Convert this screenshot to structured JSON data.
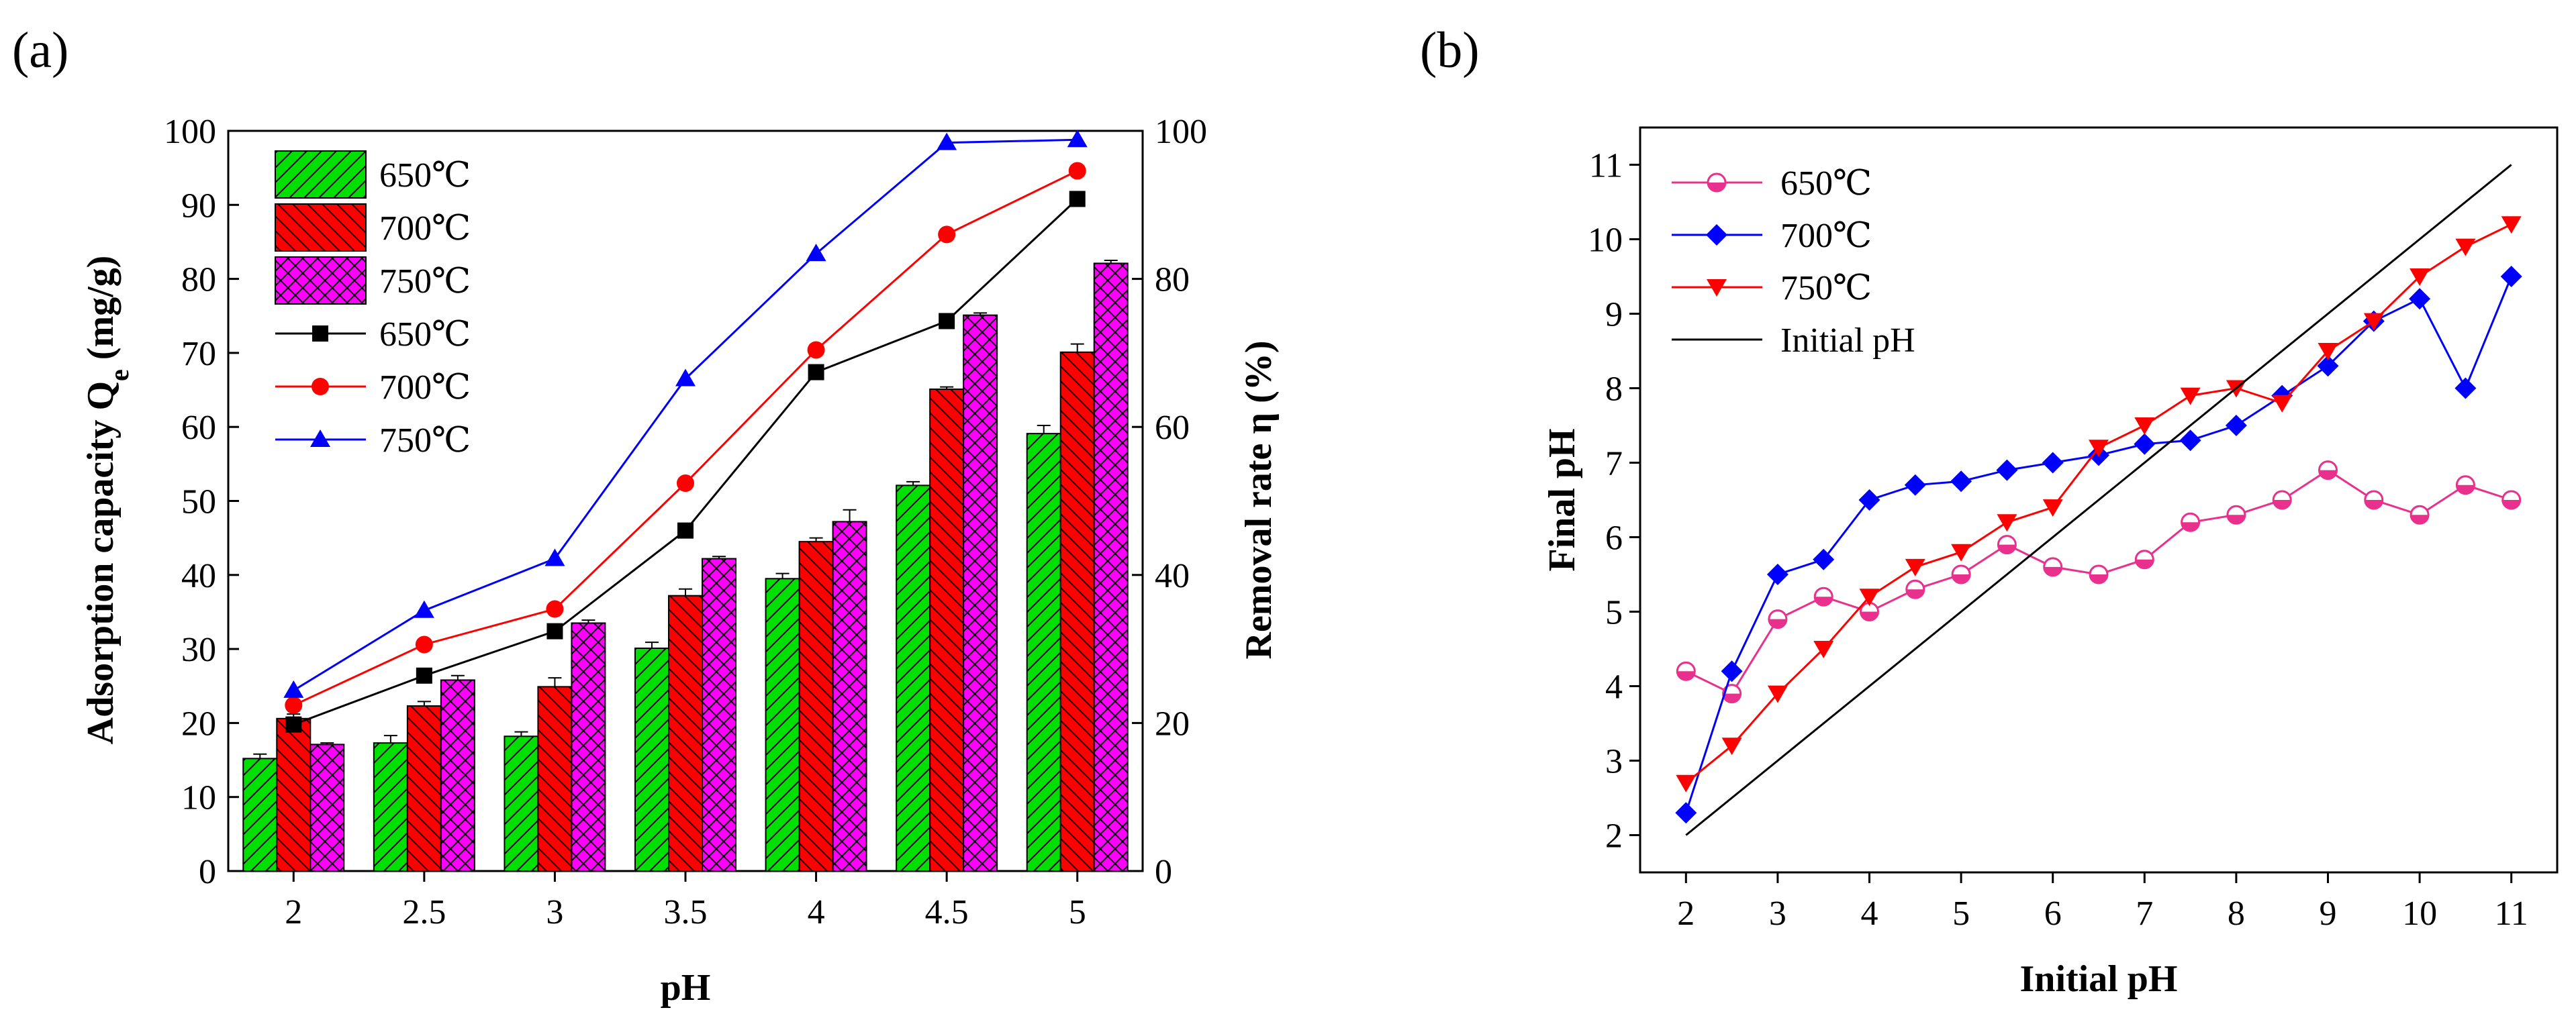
{
  "chart_data": [
    {
      "panel_label": "(a)",
      "type": "bar",
      "categories": [
        "2",
        "2.5",
        "3",
        "3.5",
        "4",
        "4.5",
        "5"
      ],
      "xlabel": "pH",
      "ylabel_main": "Adsorption capacity Q",
      "ylabel_sub": "e",
      "ylabel_unit": " (mg/g)",
      "ylabel_right": "Removal rate η (%)",
      "ylim": [
        0,
        100
      ],
      "ylim_right": [
        0,
        100
      ],
      "yticks": [
        "0",
        "10",
        "20",
        "30",
        "40",
        "50",
        "60",
        "70",
        "80",
        "90",
        "100"
      ],
      "yticks_right": [
        "0",
        "20",
        "40",
        "60",
        "80",
        "100"
      ],
      "legend_position": "top-left",
      "series": [
        {
          "name": "650℃",
          "kind": "bar",
          "color": "#00e000",
          "pattern": "diag-fwd",
          "values": [
            15.2,
            17.3,
            18.2,
            30.1,
            39.5,
            52.1,
            59.1
          ],
          "errors": [
            0.6,
            1.0,
            0.6,
            0.8,
            0.7,
            0.5,
            1.1
          ]
        },
        {
          "name": "700℃",
          "kind": "bar",
          "color": "#ff0000",
          "pattern": "diag-back",
          "values": [
            20.6,
            22.3,
            24.9,
            37.2,
            44.5,
            65.1,
            70.1
          ],
          "errors": [
            0.6,
            0.6,
            1.2,
            0.9,
            0.5,
            0.3,
            1.1
          ]
        },
        {
          "name": "750℃",
          "kind": "bar",
          "color": "#ff00ff",
          "pattern": "cross",
          "values": [
            17.1,
            25.8,
            33.5,
            42.2,
            47.2,
            75.1,
            82.1
          ],
          "errors": [
            0.2,
            0.6,
            0.4,
            0.3,
            1.6,
            0.3,
            0.4
          ]
        },
        {
          "name": "650℃",
          "kind": "line",
          "axis": "right",
          "color": "#000000",
          "marker": "square",
          "values": [
            19.8,
            26.4,
            32.4,
            46.0,
            67.4,
            74.3,
            90.8
          ]
        },
        {
          "name": "700℃",
          "kind": "line",
          "axis": "right",
          "color": "#ff0000",
          "marker": "circle",
          "values": [
            22.4,
            30.6,
            35.4,
            52.4,
            70.4,
            86.0,
            94.6
          ]
        },
        {
          "name": "750℃",
          "kind": "line",
          "axis": "right",
          "color": "#0000ff",
          "marker": "triangle-up",
          "values": [
            24.4,
            35.2,
            42.2,
            66.5,
            83.4,
            98.4,
            98.8
          ]
        }
      ]
    },
    {
      "panel_label": "(b)",
      "type": "line",
      "xlabel": "Initial pH",
      "ylabel": "Final pH",
      "xlim": [
        1.5,
        11.5
      ],
      "ylim": [
        1.5,
        11.5
      ],
      "xticks": [
        "2",
        "3",
        "4",
        "5",
        "6",
        "7",
        "8",
        "9",
        "10",
        "11"
      ],
      "yticks": [
        "2",
        "3",
        "4",
        "5",
        "6",
        "7",
        "8",
        "9",
        "10",
        "11"
      ],
      "legend_position": "top-left",
      "x": [
        2,
        2.5,
        3,
        3.5,
        4,
        4.5,
        5,
        5.5,
        6,
        6.5,
        7,
        7.5,
        8,
        8.5,
        9,
        9.5,
        10,
        10.5,
        11
      ],
      "series": [
        {
          "name": "650℃",
          "color": "#e8308c",
          "marker": "half-circle",
          "values": [
            4.2,
            3.9,
            4.9,
            5.2,
            5.0,
            5.3,
            5.5,
            5.9,
            5.6,
            5.5,
            5.7,
            6.2,
            6.3,
            6.5,
            6.9,
            6.5,
            6.3,
            6.7,
            6.5
          ]
        },
        {
          "name": "700℃",
          "color": "#0000ff",
          "marker": "diamond",
          "values": [
            2.3,
            4.2,
            5.5,
            5.7,
            6.5,
            6.7,
            6.75,
            6.9,
            7.0,
            7.1,
            7.25,
            7.3,
            7.5,
            7.9,
            8.3,
            8.9,
            9.2,
            8.0,
            9.5
          ]
        },
        {
          "name": "750℃",
          "color": "#ff0000",
          "marker": "triangle-down",
          "values": [
            2.7,
            3.2,
            3.9,
            4.5,
            5.2,
            5.6,
            5.8,
            6.2,
            6.4,
            7.2,
            7.5,
            7.9,
            8.0,
            7.8,
            8.5,
            8.9,
            9.5,
            9.9,
            10.2
          ]
        },
        {
          "name": "Initial pH",
          "color": "#000000",
          "marker": "none",
          "x": [
            2,
            11
          ],
          "values": [
            2,
            11
          ]
        }
      ]
    }
  ]
}
